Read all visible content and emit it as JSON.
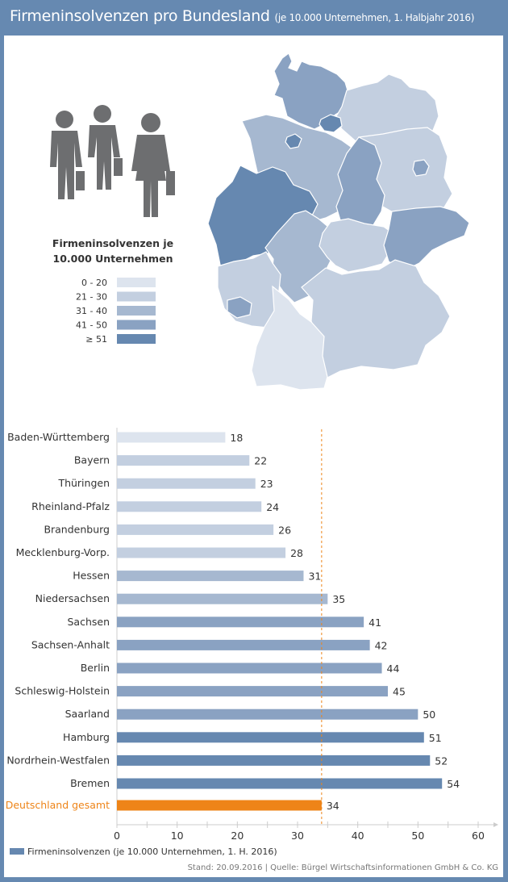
{
  "header": {
    "title": "Firmeninsolvenzen pro Bundesland",
    "subtitle": "(je 10.000 Unternehmen, 1. Halbjahr 2016)"
  },
  "map_legend": {
    "title_line1": "Firmeninsolvenzen je",
    "title_line2": "10.000 Unternehmen",
    "bins": [
      {
        "label": "0 - 20",
        "color": "#dde4ee"
      },
      {
        "label": "21 - 30",
        "color": "#c3cfe0"
      },
      {
        "label": "31 - 40",
        "color": "#a6b8d0"
      },
      {
        "label": "41 - 50",
        "color": "#8aa2c2"
      },
      {
        "label": "≥ 51",
        "color": "#6688b0"
      }
    ]
  },
  "chart_data": {
    "type": "bar",
    "orientation": "horizontal",
    "title": "Firmeninsolvenzen pro Bundesland (je 10.000 Unternehmen, 1. Halbjahr 2016)",
    "categories": [
      "Baden-Württemberg",
      "Bayern",
      "Thüringen",
      "Rheinland-Pfalz",
      "Brandenburg",
      "Mecklenburg-Vorp.",
      "Hessen",
      "Niedersachsen",
      "Sachsen",
      "Sachsen-Anhalt",
      "Berlin",
      "Schleswig-Holstein",
      "Saarland",
      "Hamburg",
      "Nordrhein-Westfalen",
      "Bremen"
    ],
    "values": [
      18,
      22,
      23,
      24,
      26,
      28,
      31,
      35,
      41,
      42,
      44,
      45,
      50,
      51,
      52,
      54
    ],
    "total": {
      "label": "Deutschland gesamt",
      "value": 34,
      "color": "#ee8418"
    },
    "xlim": [
      0,
      60
    ],
    "xticks": [
      0,
      10,
      20,
      30,
      40,
      50,
      60
    ],
    "reference_line": 34,
    "legend": "Firmeninsolvenzen (je 10.000 Unternehmen, 1. H. 2016)",
    "legend_color": "#6688b0"
  },
  "footer": "Stand: 20.09.2016 | Quelle: Bürgel Wirtschaftsinformationen GmbH & Co. KG"
}
